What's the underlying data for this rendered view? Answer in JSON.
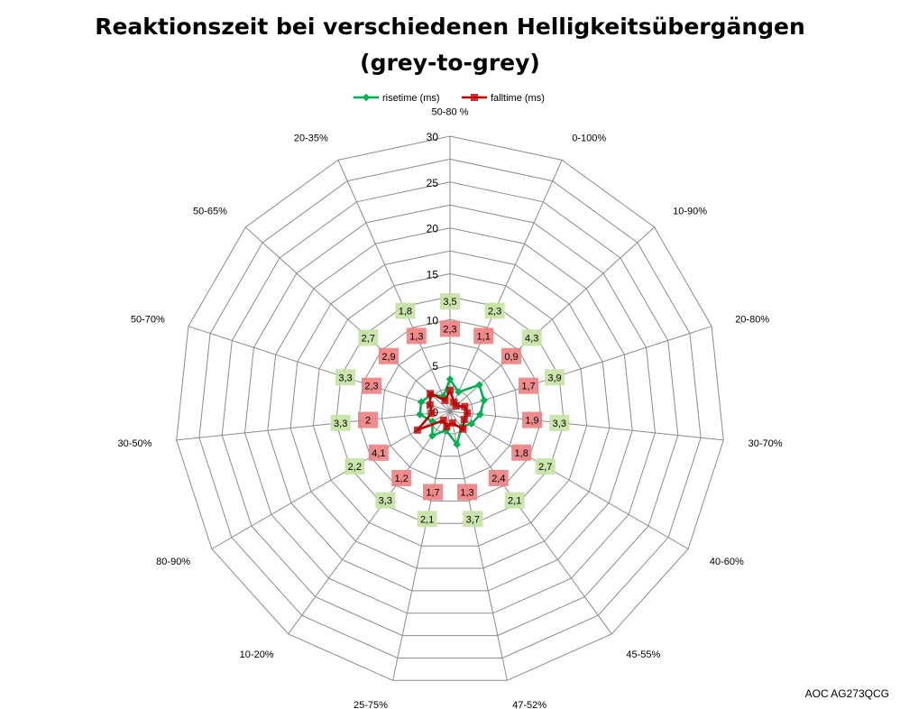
{
  "chart_data": {
    "type": "radar",
    "title": "Reaktionszeit bei verschiedenen Helligkeitsübergängen",
    "subtitle": "(grey-to-grey)",
    "categories": [
      "50-80 %",
      "0-100%",
      "10-90%",
      "20-80%",
      "30-70%",
      "40-60%",
      "45-55%",
      "47-52%",
      "25-75%",
      "10-20%",
      "80-90%",
      "30-50%",
      "50-70%",
      "50-65%",
      "20-35%"
    ],
    "radial_ticks": [
      0,
      5,
      10,
      15,
      20,
      25,
      30
    ],
    "rlim": [
      0,
      30
    ],
    "grid": true,
    "legend_position": "top",
    "series": [
      {
        "name": "risetime (ms)",
        "color": "#00b050",
        "label_bg": "#c4e3a3",
        "values": [
          3.5,
          2.3,
          4.3,
          3.9,
          3.3,
          2.7,
          2.1,
          3.7,
          2.1,
          3.3,
          2.2,
          3.3,
          3.3,
          2.7,
          1.8
        ],
        "labels": [
          "3,5",
          "2,3",
          "4,3",
          "3,9",
          "3,3",
          "2,7",
          "2,1",
          "3,7",
          "2,1",
          "3,3",
          "2,2",
          "3,3",
          "3,3",
          "2,7",
          "1,8"
        ]
      },
      {
        "name": "falltime (ms)",
        "color": "#c00000",
        "label_bg": "#f08080",
        "values": [
          2.3,
          1.1,
          0.9,
          1.7,
          1.9,
          1.8,
          2.4,
          1.3,
          1.7,
          1.2,
          4.1,
          2.0,
          2.3,
          2.9,
          1.3
        ],
        "labels": [
          "2,3",
          "1,1",
          "0,9",
          "1,7",
          "1,9",
          "1,8",
          "2,4",
          "1,3",
          "1,7",
          "1,2",
          "4,1",
          "2",
          "2,3",
          "2,9",
          "1,3"
        ]
      }
    ]
  },
  "watermark": "AOC AG273QCG"
}
